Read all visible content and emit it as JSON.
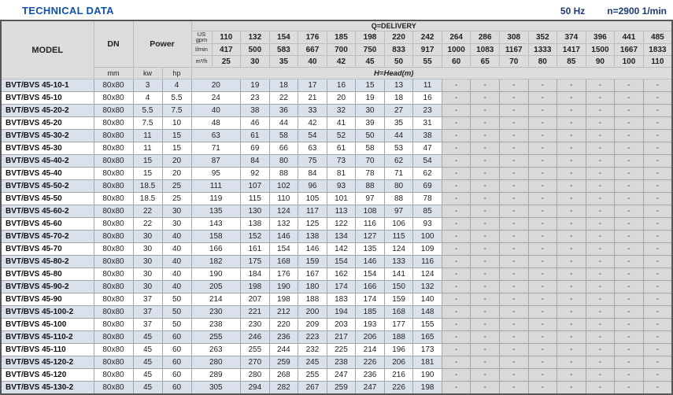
{
  "header": {
    "title": "TECHNICAL DATA",
    "frequency": "50 Hz",
    "speed": "n=2900 1/min"
  },
  "colors": {
    "title_blue": "#0f52a8",
    "navy": "#1c3a74",
    "stripe_blue": "#dbe1ec",
    "header_gray": "#dcdcdc",
    "dash_gray": "#d9d9d9",
    "grid": "#a6a6a6"
  },
  "table": {
    "headers": {
      "model": "MODEL",
      "dn": "DN",
      "dn_unit": "mm",
      "power": "Power",
      "power_kw": "kw",
      "power_hp": "hp",
      "delivery_title": "Q=DELIVERY",
      "head_title": "H=Head(m)",
      "unit_us_gpm": "US gpm",
      "unit_l_min": "l/min",
      "unit_m3_h": "m³/h"
    },
    "delivery": {
      "us_gpm": [
        110,
        132,
        154,
        176,
        185,
        198,
        220,
        242,
        264,
        286,
        308,
        352,
        374,
        396,
        441,
        485
      ],
      "l_min": [
        417,
        500,
        583,
        667,
        700,
        750,
        833,
        917,
        1000,
        1083,
        1167,
        1333,
        1417,
        1500,
        1667,
        1833
      ],
      "m3_h": [
        25,
        30,
        35,
        40,
        42,
        45,
        50,
        55,
        60,
        65,
        70,
        80,
        85,
        90,
        100,
        110
      ]
    },
    "empty_cell": "-",
    "rows": [
      {
        "model": "BVT/BVS 45-10-1",
        "dn": "80x80",
        "kw": "3",
        "hp": "4",
        "head": [
          20,
          19,
          18,
          17,
          16,
          15,
          13,
          11
        ]
      },
      {
        "model": "BVT/BVS 45-10",
        "dn": "80x80",
        "kw": "4",
        "hp": "5.5",
        "head": [
          24,
          23,
          22,
          21,
          20,
          19,
          18,
          16
        ]
      },
      {
        "model": "BVT/BVS 45-20-2",
        "dn": "80x80",
        "kw": "5.5",
        "hp": "7.5",
        "head": [
          40,
          38,
          36,
          33,
          32,
          30,
          27,
          23
        ]
      },
      {
        "model": "BVT/BVS 45-20",
        "dn": "80x80",
        "kw": "7.5",
        "hp": "10",
        "head": [
          48,
          46,
          44,
          42,
          41,
          39,
          35,
          31
        ]
      },
      {
        "model": "BVT/BVS 45-30-2",
        "dn": "80x80",
        "kw": "11",
        "hp": "15",
        "head": [
          63,
          61,
          58,
          54,
          52,
          50,
          44,
          38
        ]
      },
      {
        "model": "BVT/BVS 45-30",
        "dn": "80x80",
        "kw": "11",
        "hp": "15",
        "head": [
          71,
          69,
          66,
          63,
          61,
          58,
          53,
          47
        ]
      },
      {
        "model": "BVT/BVS 45-40-2",
        "dn": "80x80",
        "kw": "15",
        "hp": "20",
        "head": [
          87,
          84,
          80,
          75,
          73,
          70,
          62,
          54
        ]
      },
      {
        "model": "BVT/BVS 45-40",
        "dn": "80x80",
        "kw": "15",
        "hp": "20",
        "head": [
          95,
          92,
          88,
          84,
          81,
          78,
          71,
          62
        ]
      },
      {
        "model": "BVT/BVS 45-50-2",
        "dn": "80x80",
        "kw": "18.5",
        "hp": "25",
        "head": [
          111,
          107,
          102,
          96,
          93,
          88,
          80,
          69
        ]
      },
      {
        "model": "BVT/BVS 45-50",
        "dn": "80x80",
        "kw": "18.5",
        "hp": "25",
        "head": [
          119,
          115,
          110,
          105,
          101,
          97,
          88,
          78
        ]
      },
      {
        "model": "BVT/BVS 45-60-2",
        "dn": "80x80",
        "kw": "22",
        "hp": "30",
        "head": [
          135,
          130,
          124,
          117,
          113,
          108,
          97,
          85
        ]
      },
      {
        "model": "BVT/BVS 45-60",
        "dn": "80x80",
        "kw": "22",
        "hp": "30",
        "head": [
          143,
          138,
          132,
          125,
          122,
          116,
          106,
          93
        ]
      },
      {
        "model": "BVT/BVS 45-70-2",
        "dn": "80x80",
        "kw": "30",
        "hp": "40",
        "head": [
          158,
          152,
          146,
          138,
          134,
          127,
          115,
          100
        ]
      },
      {
        "model": "BVT/BVS 45-70",
        "dn": "80x80",
        "kw": "30",
        "hp": "40",
        "head": [
          166,
          161,
          154,
          146,
          142,
          135,
          124,
          109
        ]
      },
      {
        "model": "BVT/BVS 45-80-2",
        "dn": "80x80",
        "kw": "30",
        "hp": "40",
        "head": [
          182,
          175,
          168,
          159,
          154,
          146,
          133,
          116
        ]
      },
      {
        "model": "BVT/BVS 45-80",
        "dn": "80x80",
        "kw": "30",
        "hp": "40",
        "head": [
          190,
          184,
          176,
          167,
          162,
          154,
          141,
          124
        ]
      },
      {
        "model": "BVT/BVS 45-90-2",
        "dn": "80x80",
        "kw": "30",
        "hp": "40",
        "head": [
          205,
          198,
          190,
          180,
          174,
          166,
          150,
          132
        ]
      },
      {
        "model": "BVT/BVS 45-90",
        "dn": "80x80",
        "kw": "37",
        "hp": "50",
        "head": [
          214,
          207,
          198,
          188,
          183,
          174,
          159,
          140
        ]
      },
      {
        "model": "BVT/BVS 45-100-2",
        "dn": "80x80",
        "kw": "37",
        "hp": "50",
        "head": [
          230,
          221,
          212,
          200,
          194,
          185,
          168,
          148
        ]
      },
      {
        "model": "BVT/BVS 45-100",
        "dn": "80x80",
        "kw": "37",
        "hp": "50",
        "head": [
          238,
          230,
          220,
          209,
          203,
          193,
          177,
          155
        ]
      },
      {
        "model": "BVT/BVS 45-110-2",
        "dn": "80x80",
        "kw": "45",
        "hp": "60",
        "head": [
          255,
          246,
          236,
          223,
          217,
          206,
          188,
          165
        ]
      },
      {
        "model": "BVT/BVS 45-110",
        "dn": "80x80",
        "kw": "45",
        "hp": "60",
        "head": [
          263,
          255,
          244,
          232,
          225,
          214,
          196,
          173
        ]
      },
      {
        "model": "BVT/BVS 45-120-2",
        "dn": "80x80",
        "kw": "45",
        "hp": "60",
        "head": [
          280,
          270,
          259,
          245,
          238,
          226,
          206,
          181
        ]
      },
      {
        "model": "BVT/BVS 45-120",
        "dn": "80x80",
        "kw": "45",
        "hp": "60",
        "head": [
          289,
          280,
          268,
          255,
          247,
          236,
          216,
          190
        ]
      },
      {
        "model": "BVT/BVS 45-130-2",
        "dn": "80x80",
        "kw": "45",
        "hp": "60",
        "head": [
          305,
          294,
          282,
          267,
          259,
          247,
          226,
          198
        ]
      }
    ]
  }
}
